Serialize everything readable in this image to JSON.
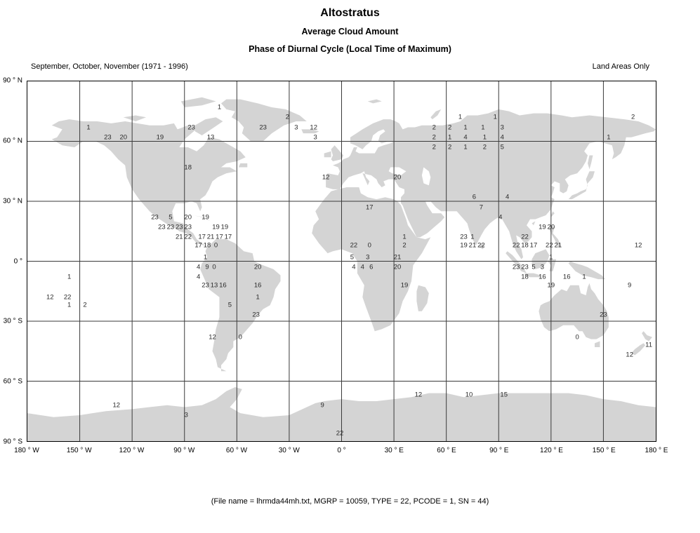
{
  "header": {
    "title": "Altostratus",
    "subtitle1": "Average Cloud Amount",
    "subtitle2": "Phase of Diurnal Cycle (Local Time of Maximum)",
    "period": "September, October, November (1971 - 1996)",
    "coverage": "Land Areas Only"
  },
  "footer": {
    "text": "(File name = lhrmda44mh.txt, MGRP = 10059, TYPE = 22, PCODE = 1, SN = 44)"
  },
  "chart_data": {
    "type": "scatter",
    "projection": "equirectangular",
    "title": "Altostratus — Phase of Diurnal Cycle (Local Time of Maximum)",
    "lon_range": [
      -180,
      180
    ],
    "lat_range": [
      -90,
      90
    ],
    "grid_step_deg": 30,
    "grid": true,
    "land_color": "#d4d4d4",
    "ocean_color": "#ffffff",
    "x_tick_labels": [
      "180 ° W",
      "150 ° W",
      "120 ° W",
      "90 ° W",
      "60 ° W",
      "30 ° W",
      "0 °",
      "30 ° E",
      "60 ° E",
      "90 ° E",
      "120 ° E",
      "150 ° E",
      "180 ° E"
    ],
    "y_tick_labels": [
      "90 ° N",
      "60 ° N",
      "30 ° N",
      "0 °",
      "30 ° S",
      "60 ° S",
      "90 ° S"
    ],
    "value_meaning": "local time of maximum (hour 0-23)",
    "points": [
      [
        -70,
        77,
        "1"
      ],
      [
        -31,
        72,
        "2"
      ],
      [
        68,
        72,
        "1"
      ],
      [
        88,
        72,
        "1"
      ],
      [
        167,
        72,
        "2"
      ],
      [
        -145,
        67,
        "1"
      ],
      [
        -86,
        67,
        "23"
      ],
      [
        -45,
        67,
        "23"
      ],
      [
        -26,
        67,
        "3"
      ],
      [
        -16,
        67,
        "12"
      ],
      [
        53,
        67,
        "2"
      ],
      [
        62,
        67,
        "2"
      ],
      [
        71,
        67,
        "1"
      ],
      [
        81,
        67,
        "1"
      ],
      [
        92,
        67,
        "3"
      ],
      [
        -134,
        62,
        "23"
      ],
      [
        -125,
        62,
        "20"
      ],
      [
        -104,
        62,
        "19"
      ],
      [
        -75,
        62,
        "13"
      ],
      [
        -15,
        62,
        "3"
      ],
      [
        53,
        62,
        "2"
      ],
      [
        62,
        62,
        "1"
      ],
      [
        71,
        62,
        "4"
      ],
      [
        82,
        62,
        "1"
      ],
      [
        92,
        62,
        "4"
      ],
      [
        153,
        62,
        "1"
      ],
      [
        53,
        57,
        "2"
      ],
      [
        62,
        57,
        "2"
      ],
      [
        71,
        57,
        "1"
      ],
      [
        82,
        57,
        "2"
      ],
      [
        92,
        57,
        "5"
      ],
      [
        -88,
        47,
        "18"
      ],
      [
        -9,
        42,
        "12"
      ],
      [
        32,
        42,
        "20"
      ],
      [
        76,
        32,
        "6"
      ],
      [
        95,
        32,
        "4"
      ],
      [
        16,
        27,
        "17"
      ],
      [
        80,
        27,
        "7"
      ],
      [
        -107,
        22,
        "23"
      ],
      [
        -98,
        22,
        "5"
      ],
      [
        -88,
        22,
        "20"
      ],
      [
        -78,
        22,
        "19"
      ],
      [
        91,
        22,
        "4"
      ],
      [
        -103,
        17,
        "23"
      ],
      [
        -98,
        17,
        "23"
      ],
      [
        -93,
        17,
        "23"
      ],
      [
        -88,
        17,
        "23"
      ],
      [
        -72,
        17,
        "19"
      ],
      [
        -67,
        17,
        "19"
      ],
      [
        115,
        17,
        "19"
      ],
      [
        120,
        17,
        "20"
      ],
      [
        -93,
        12,
        "21"
      ],
      [
        -88,
        12,
        "22"
      ],
      [
        -80,
        12,
        "17"
      ],
      [
        -75,
        12,
        "21"
      ],
      [
        -70,
        12,
        "17"
      ],
      [
        -65,
        12,
        "17"
      ],
      [
        36,
        12,
        "1"
      ],
      [
        70,
        12,
        "23"
      ],
      [
        75,
        12,
        "1"
      ],
      [
        105,
        12,
        "22"
      ],
      [
        -82,
        8,
        "17"
      ],
      [
        -77,
        8,
        "18"
      ],
      [
        -72,
        8,
        "0"
      ],
      [
        7,
        8,
        "22"
      ],
      [
        16,
        8,
        "0"
      ],
      [
        36,
        8,
        "2"
      ],
      [
        70,
        8,
        "19"
      ],
      [
        75,
        8,
        "21"
      ],
      [
        80,
        8,
        "22"
      ],
      [
        100,
        8,
        "22"
      ],
      [
        105,
        8,
        "18"
      ],
      [
        110,
        8,
        "17"
      ],
      [
        119,
        8,
        "22"
      ],
      [
        124,
        8,
        "21"
      ],
      [
        170,
        8,
        "12"
      ],
      [
        -78,
        2,
        "1"
      ],
      [
        6,
        2,
        "5"
      ],
      [
        15,
        2,
        "3"
      ],
      [
        32,
        2,
        "21"
      ],
      [
        120,
        2,
        "1"
      ],
      [
        -82,
        -3,
        "4"
      ],
      [
        -77,
        -3,
        "9"
      ],
      [
        -73,
        -3,
        "0"
      ],
      [
        -48,
        -3,
        "20"
      ],
      [
        7,
        -3,
        "4"
      ],
      [
        12,
        -3,
        "4"
      ],
      [
        17,
        -3,
        "6"
      ],
      [
        32,
        -3,
        "20"
      ],
      [
        100,
        -3,
        "23"
      ],
      [
        105,
        -3,
        "23"
      ],
      [
        110,
        -3,
        "5"
      ],
      [
        115,
        -3,
        "3"
      ],
      [
        -156,
        -8,
        "1"
      ],
      [
        -82,
        -8,
        "4"
      ],
      [
        105,
        -8,
        "18"
      ],
      [
        115,
        -8,
        "16"
      ],
      [
        129,
        -8,
        "16"
      ],
      [
        139,
        -8,
        "1"
      ],
      [
        -78,
        -12,
        "23"
      ],
      [
        -73,
        -12,
        "13"
      ],
      [
        -68,
        -12,
        "16"
      ],
      [
        -48,
        -12,
        "16"
      ],
      [
        36,
        -12,
        "19"
      ],
      [
        120,
        -12,
        "19"
      ],
      [
        165,
        -12,
        "9"
      ],
      [
        -167,
        -18,
        "12"
      ],
      [
        -157,
        -18,
        "22"
      ],
      [
        -48,
        -18,
        "1"
      ],
      [
        -156,
        -22,
        "1"
      ],
      [
        -147,
        -22,
        "2"
      ],
      [
        -64,
        -22,
        "5"
      ],
      [
        -49,
        -27,
        "23"
      ],
      [
        150,
        -27,
        "23"
      ],
      [
        -74,
        -38,
        "12"
      ],
      [
        -58,
        -38,
        "0"
      ],
      [
        135,
        -38,
        "0"
      ],
      [
        176,
        -42,
        "11"
      ],
      [
        165,
        -47,
        "12"
      ],
      [
        44,
        -67,
        "12"
      ],
      [
        73,
        -67,
        "10"
      ],
      [
        93,
        -67,
        "15"
      ],
      [
        -129,
        -72,
        "12"
      ],
      [
        -11,
        -72,
        "9"
      ],
      [
        -89,
        -77,
        "3"
      ],
      [
        -1,
        -86,
        "22"
      ]
    ]
  }
}
